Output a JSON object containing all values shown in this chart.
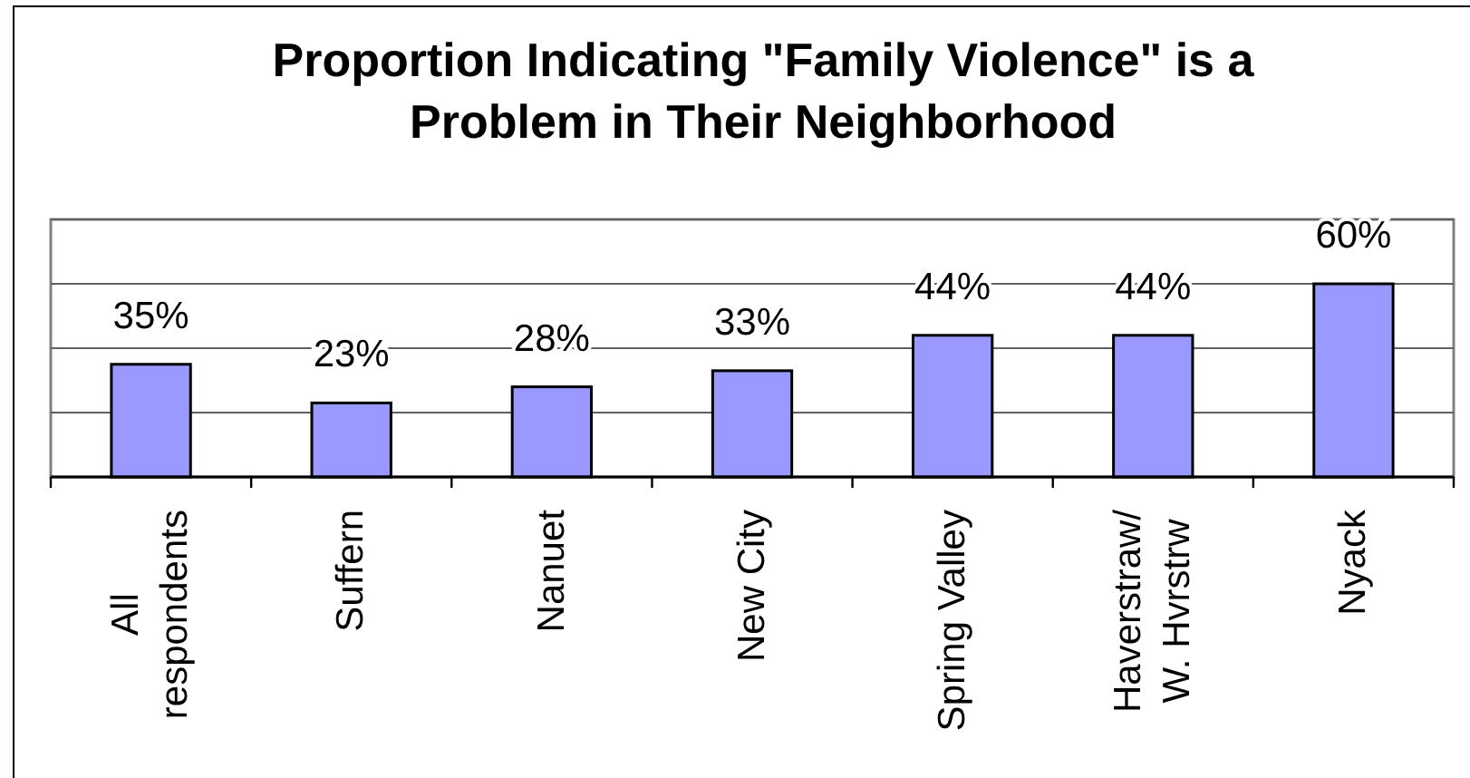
{
  "chart_data": {
    "type": "bar",
    "title": "Proportion Indicating \"Family Violence\" is a Problem in Their Neighborhood",
    "categories": [
      "All respondents",
      "Suffern",
      "Nanuet",
      "New City",
      "Spring Valley",
      "Haverstraw/ W. Hvrstrw",
      "Nyack"
    ],
    "values": [
      35,
      23,
      28,
      33,
      44,
      44,
      60
    ],
    "value_labels": [
      "35%",
      "23%",
      "28%",
      "33%",
      "44%",
      "44%",
      "60%"
    ],
    "color": "#9999ff",
    "ylim": [
      0,
      80
    ],
    "yticks": [
      {
        "value": 0,
        "label": null
      },
      {
        "value": 20,
        "label": null
      },
      {
        "value": 40,
        "label": null
      },
      {
        "value": 60,
        "label": null
      },
      {
        "value": 80,
        "label": null
      }
    ],
    "grid": "y",
    "tick_labels": "x"
  }
}
